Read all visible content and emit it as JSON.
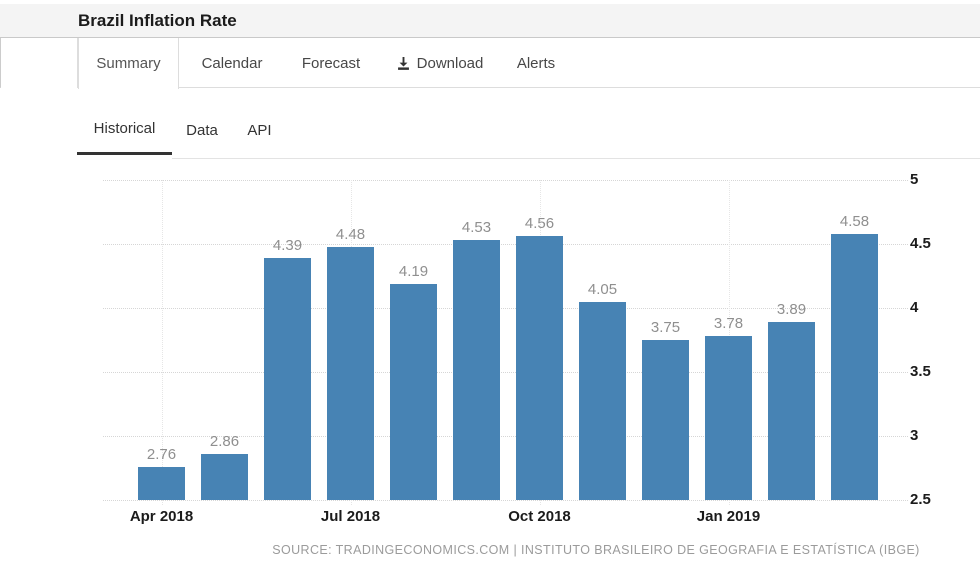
{
  "header": {
    "title": "Brazil Inflation Rate"
  },
  "tabs": {
    "items": [
      {
        "label": "Summary",
        "active": true
      },
      {
        "label": "Calendar",
        "active": false
      },
      {
        "label": "Forecast",
        "active": false
      },
      {
        "label": "Download",
        "active": false,
        "icon": "download-icon"
      },
      {
        "label": "Alerts",
        "active": false
      }
    ]
  },
  "subtabs": {
    "items": [
      {
        "label": "Historical",
        "active": true
      },
      {
        "label": "Data",
        "active": false
      },
      {
        "label": "API",
        "active": false
      }
    ]
  },
  "chart_data": {
    "type": "bar",
    "title": "Brazil Inflation Rate",
    "values": [
      2.76,
      2.86,
      4.39,
      4.48,
      4.19,
      4.53,
      4.56,
      4.05,
      3.75,
      3.78,
      3.89,
      4.58
    ],
    "value_labels": [
      "2.76",
      "2.86",
      "4.39",
      "4.48",
      "4.19",
      "4.53",
      "4.56",
      "4.05",
      "3.75",
      "3.78",
      "3.89",
      "4.58"
    ],
    "x_ticks": [
      {
        "bar_index": 0,
        "label": "Apr 2018"
      },
      {
        "bar_index": 3,
        "label": "Jul 2018"
      },
      {
        "bar_index": 6,
        "label": "Oct 2018"
      },
      {
        "bar_index": 9,
        "label": "Jan 2019"
      }
    ],
    "y_ticks": [
      2.5,
      3,
      3.5,
      4,
      4.5,
      5
    ],
    "ylim": [
      2.5,
      5
    ],
    "xlabel": "",
    "ylabel": "",
    "grid": "dotted",
    "bar_color": "#4783b4",
    "value_label_color": "#8f8f8f"
  },
  "footer": {
    "source_line": "SOURCE: TRADINGECONOMICS.COM | INSTITUTO BRASILEIRO DE GEOGRAFIA E ESTATÍSTICA (IBGE)"
  }
}
